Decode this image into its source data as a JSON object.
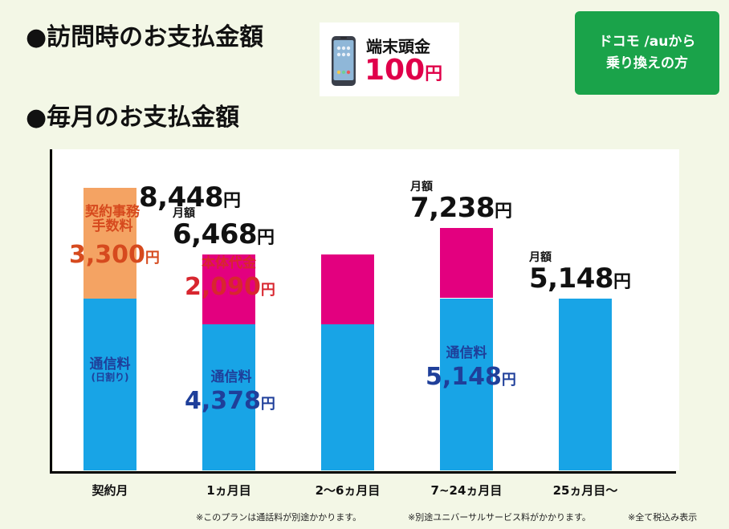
{
  "header": {
    "visit_title": "●訪問時のお支払金額",
    "monthly_title": "●毎月のお支払金額"
  },
  "device": {
    "title": "端末頭金",
    "amount": "100",
    "unit": "円",
    "icon": "smartphone-icon"
  },
  "carrier_button": {
    "line1": "ドコモ /auから",
    "line2": "乗り換えの方",
    "color": "#1aa34a"
  },
  "colors": {
    "communication": "#18a4e6",
    "contract_fee": "#f4a363",
    "device_price": "#e3007f",
    "blue_text": "#1f3f9a",
    "red_text": "#d8262f",
    "contract_text": "#d64a1e"
  },
  "chart_data": {
    "type": "bar",
    "stacked": true,
    "title": "",
    "xlabel": "",
    "ylabel": "",
    "ylim": [
      0,
      9600
    ],
    "categories": [
      "契約月",
      "1ヵ月目",
      "2～6ヵ月目",
      "7~24ヵ月目",
      "25ヵ月目～"
    ],
    "series": [
      {
        "name": "通信料",
        "values": [
          5148,
          4378,
          4378,
          5148,
          5148
        ]
      },
      {
        "name": "本体代金",
        "values": [
          0,
          2090,
          2090,
          2090,
          0
        ]
      },
      {
        "name": "契約事務手数料",
        "values": [
          3300,
          0,
          0,
          0,
          0
        ]
      }
    ],
    "totals": [
      8448,
      6468,
      6468,
      7238,
      5148
    ],
    "labels": {
      "monthly_caption": "月額",
      "yen": "円",
      "total_0": "8,448",
      "total_1": "6,468",
      "total_3": "7,238",
      "total_4": "5,148",
      "contract_fee_name_1": "契約事務",
      "contract_fee_name_2": "手数料",
      "contract_fee_value": "3,300",
      "device_price_name": "本体代金",
      "device_price_value": "2,090",
      "comm_name": "通信料",
      "comm_note": "(日割り)",
      "comm_value_1": "4,378",
      "comm_value_3": "5,148"
    }
  },
  "footnotes": [
    "※このプランは通話料が別途かかります。",
    "※別途ユニバーサルサービス料がかかります。",
    "※全て税込み表示"
  ]
}
